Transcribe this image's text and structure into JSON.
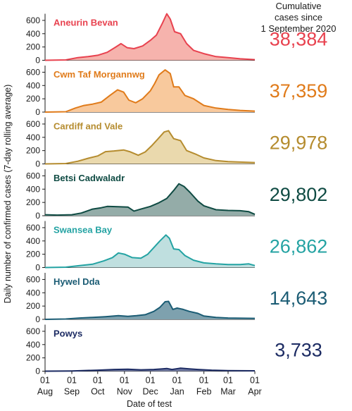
{
  "chart_data": {
    "type": "area",
    "ylabel": "Daily number of confirmed cases (7-day rolling average)",
    "xlabel": "Date of test",
    "cumulative_header": [
      "Cumulative",
      "cases since",
      "1 September 2020"
    ],
    "xlim": [
      "2020-08-01",
      "2021-04-01"
    ],
    "ylim": [
      0,
      700
    ],
    "yticks": [
      0,
      200,
      400,
      600
    ],
    "xticks": [
      {
        "day": "01",
        "month": "Aug",
        "date": "2020-08-01"
      },
      {
        "day": "01",
        "month": "Sep",
        "date": "2020-09-01"
      },
      {
        "day": "01",
        "month": "Oct",
        "date": "2020-10-01"
      },
      {
        "day": "01",
        "month": "Nov",
        "date": "2020-11-01"
      },
      {
        "day": "01",
        "month": "Dec",
        "date": "2020-12-01"
      },
      {
        "day": "01",
        "month": "Jan",
        "date": "2021-01-01"
      },
      {
        "day": "01",
        "month": "Feb",
        "date": "2021-02-01"
      },
      {
        "day": "01",
        "month": "Mar",
        "date": "2021-03-01"
      },
      {
        "day": "01",
        "month": "Apr",
        "date": "2021-04-01"
      }
    ],
    "series": [
      {
        "name": "Aneurin Bevan",
        "cumulative": "38,384",
        "color": "#e8424f",
        "fill": "#f6b3ad",
        "points": [
          [
            "2020-08-01",
            0
          ],
          [
            "2020-08-25",
            5
          ],
          [
            "2020-09-08",
            40
          ],
          [
            "2020-09-20",
            55
          ],
          [
            "2020-10-01",
            75
          ],
          [
            "2020-10-12",
            120
          ],
          [
            "2020-10-22",
            200
          ],
          [
            "2020-10-28",
            250
          ],
          [
            "2020-11-04",
            190
          ],
          [
            "2020-11-12",
            175
          ],
          [
            "2020-11-22",
            215
          ],
          [
            "2020-12-01",
            300
          ],
          [
            "2020-12-08",
            380
          ],
          [
            "2020-12-15",
            560
          ],
          [
            "2020-12-20",
            700
          ],
          [
            "2020-12-24",
            620
          ],
          [
            "2020-12-29",
            430
          ],
          [
            "2021-01-05",
            400
          ],
          [
            "2021-01-12",
            250
          ],
          [
            "2021-01-20",
            150
          ],
          [
            "2021-02-01",
            100
          ],
          [
            "2021-02-15",
            55
          ],
          [
            "2021-03-01",
            40
          ],
          [
            "2021-03-15",
            22
          ],
          [
            "2021-04-01",
            10
          ]
        ]
      },
      {
        "name": "Cwm Taf Morgannwg",
        "cumulative": "37,359",
        "color": "#e07b1a",
        "fill": "#f8c99d",
        "points": [
          [
            "2020-08-01",
            0
          ],
          [
            "2020-08-25",
            5
          ],
          [
            "2020-09-05",
            60
          ],
          [
            "2020-09-15",
            100
          ],
          [
            "2020-09-25",
            120
          ],
          [
            "2020-10-05",
            150
          ],
          [
            "2020-10-15",
            250
          ],
          [
            "2020-10-24",
            335
          ],
          [
            "2020-10-31",
            300
          ],
          [
            "2020-11-06",
            180
          ],
          [
            "2020-11-14",
            140
          ],
          [
            "2020-11-22",
            200
          ],
          [
            "2020-12-01",
            320
          ],
          [
            "2020-12-06",
            430
          ],
          [
            "2020-12-11",
            560
          ],
          [
            "2020-12-18",
            635
          ],
          [
            "2020-12-24",
            580
          ],
          [
            "2020-12-28",
            380
          ],
          [
            "2021-01-03",
            380
          ],
          [
            "2021-01-10",
            250
          ],
          [
            "2021-01-20",
            200
          ],
          [
            "2021-02-01",
            100
          ],
          [
            "2021-02-15",
            60
          ],
          [
            "2021-03-01",
            40
          ],
          [
            "2021-03-15",
            25
          ],
          [
            "2021-04-01",
            15
          ]
        ]
      },
      {
        "name": "Cardiff and Vale",
        "cumulative": "29,978",
        "color": "#b58c2f",
        "fill": "#ead9ad",
        "points": [
          [
            "2020-08-01",
            0
          ],
          [
            "2020-08-25",
            5
          ],
          [
            "2020-09-08",
            40
          ],
          [
            "2020-09-20",
            85
          ],
          [
            "2020-10-01",
            120
          ],
          [
            "2020-10-10",
            185
          ],
          [
            "2020-10-20",
            195
          ],
          [
            "2020-10-31",
            210
          ],
          [
            "2020-11-07",
            185
          ],
          [
            "2020-11-17",
            130
          ],
          [
            "2020-11-25",
            180
          ],
          [
            "2020-12-03",
            280
          ],
          [
            "2020-12-10",
            380
          ],
          [
            "2020-12-17",
            480
          ],
          [
            "2020-12-22",
            500
          ],
          [
            "2020-12-28",
            380
          ],
          [
            "2021-01-05",
            350
          ],
          [
            "2021-01-12",
            200
          ],
          [
            "2021-01-22",
            150
          ],
          [
            "2021-02-01",
            90
          ],
          [
            "2021-02-15",
            50
          ],
          [
            "2021-03-01",
            35
          ],
          [
            "2021-03-15",
            28
          ],
          [
            "2021-04-01",
            20
          ]
        ]
      },
      {
        "name": "Betsi Cadwaladr",
        "cumulative": "29,802",
        "color": "#0f4b43",
        "fill": "#94aca8",
        "points": [
          [
            "2020-08-01",
            15
          ],
          [
            "2020-08-15",
            10
          ],
          [
            "2020-09-01",
            15
          ],
          [
            "2020-09-12",
            40
          ],
          [
            "2020-09-25",
            100
          ],
          [
            "2020-10-05",
            120
          ],
          [
            "2020-10-12",
            140
          ],
          [
            "2020-10-25",
            135
          ],
          [
            "2020-11-05",
            130
          ],
          [
            "2020-11-12",
            70
          ],
          [
            "2020-11-20",
            100
          ],
          [
            "2020-12-01",
            140
          ],
          [
            "2020-12-10",
            190
          ],
          [
            "2020-12-20",
            260
          ],
          [
            "2020-12-28",
            380
          ],
          [
            "2021-01-03",
            480
          ],
          [
            "2021-01-09",
            440
          ],
          [
            "2021-01-16",
            350
          ],
          [
            "2021-01-25",
            220
          ],
          [
            "2021-02-01",
            150
          ],
          [
            "2021-02-15",
            90
          ],
          [
            "2021-03-01",
            80
          ],
          [
            "2021-03-15",
            75
          ],
          [
            "2021-03-25",
            60
          ],
          [
            "2021-04-01",
            20
          ]
        ]
      },
      {
        "name": "Swansea Bay",
        "cumulative": "26,862",
        "color": "#24a3a3",
        "fill": "#bfdfdf",
        "points": [
          [
            "2020-08-01",
            0
          ],
          [
            "2020-08-25",
            5
          ],
          [
            "2020-09-10",
            30
          ],
          [
            "2020-09-25",
            50
          ],
          [
            "2020-10-08",
            100
          ],
          [
            "2020-10-18",
            150
          ],
          [
            "2020-10-25",
            220
          ],
          [
            "2020-11-01",
            200
          ],
          [
            "2020-11-10",
            150
          ],
          [
            "2020-11-20",
            140
          ],
          [
            "2020-11-28",
            200
          ],
          [
            "2020-12-05",
            300
          ],
          [
            "2020-12-12",
            400
          ],
          [
            "2020-12-19",
            490
          ],
          [
            "2020-12-23",
            440
          ],
          [
            "2020-12-28",
            280
          ],
          [
            "2021-01-03",
            270
          ],
          [
            "2021-01-10",
            180
          ],
          [
            "2021-01-20",
            110
          ],
          [
            "2021-02-01",
            70
          ],
          [
            "2021-02-15",
            55
          ],
          [
            "2021-03-01",
            45
          ],
          [
            "2021-03-15",
            45
          ],
          [
            "2021-03-25",
            55
          ],
          [
            "2021-04-01",
            30
          ]
        ]
      },
      {
        "name": "Hywel Dda",
        "cumulative": "14,643",
        "color": "#1b5c74",
        "fill": "#7ea1ae",
        "points": [
          [
            "2020-08-01",
            0
          ],
          [
            "2020-08-25",
            5
          ],
          [
            "2020-09-10",
            20
          ],
          [
            "2020-09-25",
            30
          ],
          [
            "2020-10-10",
            40
          ],
          [
            "2020-10-25",
            55
          ],
          [
            "2020-11-05",
            45
          ],
          [
            "2020-11-15",
            55
          ],
          [
            "2020-11-25",
            70
          ],
          [
            "2020-12-05",
            120
          ],
          [
            "2020-12-12",
            180
          ],
          [
            "2020-12-18",
            265
          ],
          [
            "2020-12-22",
            270
          ],
          [
            "2020-12-27",
            150
          ],
          [
            "2021-01-01",
            170
          ],
          [
            "2021-01-08",
            150
          ],
          [
            "2021-01-15",
            120
          ],
          [
            "2021-01-25",
            90
          ],
          [
            "2021-02-01",
            50
          ],
          [
            "2021-02-15",
            30
          ],
          [
            "2021-03-01",
            20
          ],
          [
            "2021-04-01",
            15
          ]
        ]
      },
      {
        "name": "Powys",
        "cumulative": "3,733",
        "color": "#1c2b63",
        "fill": "#7780a8",
        "points": [
          [
            "2020-08-01",
            0
          ],
          [
            "2020-09-01",
            3
          ],
          [
            "2020-10-01",
            15
          ],
          [
            "2020-10-20",
            25
          ],
          [
            "2020-11-05",
            30
          ],
          [
            "2020-11-20",
            20
          ],
          [
            "2020-12-05",
            25
          ],
          [
            "2020-12-15",
            35
          ],
          [
            "2020-12-20",
            40
          ],
          [
            "2020-12-26",
            25
          ],
          [
            "2021-01-05",
            45
          ],
          [
            "2021-01-15",
            35
          ],
          [
            "2021-01-25",
            25
          ],
          [
            "2021-02-10",
            15
          ],
          [
            "2021-03-01",
            8
          ],
          [
            "2021-04-01",
            5
          ]
        ]
      }
    ]
  }
}
